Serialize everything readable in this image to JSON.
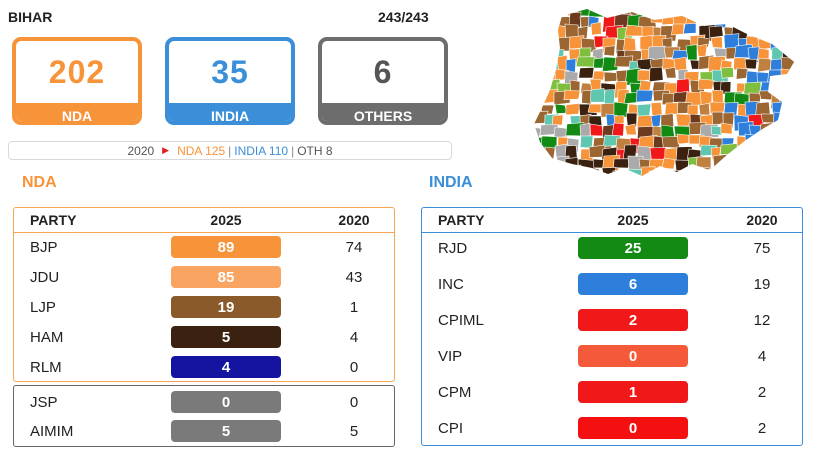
{
  "state": "BIHAR",
  "declared": "243/243",
  "tally": {
    "nda": {
      "count": "202",
      "label": "NDA"
    },
    "india": {
      "count": "35",
      "label": "INDIA"
    },
    "others": {
      "count": "6",
      "label": "OTHERS"
    }
  },
  "previous": {
    "year": "2020",
    "nda": "NDA 125",
    "india": "INDIA 110",
    "oth": "OTH 8",
    "sep": "|"
  },
  "nda_section": {
    "title": "NDA",
    "headers": {
      "party": "PARTY",
      "y2025": "2025",
      "y2020": "2020"
    },
    "rows": [
      {
        "party": "BJP",
        "seats_2025": "89",
        "seats_2020": "74",
        "color": "#f7943a"
      },
      {
        "party": "JDU",
        "seats_2025": "85",
        "seats_2020": "43",
        "color": "#f9a460"
      },
      {
        "party": "LJP",
        "seats_2025": "19",
        "seats_2020": "1",
        "color": "#8b5a2b"
      },
      {
        "party": "HAM",
        "seats_2025": "5",
        "seats_2020": "4",
        "color": "#3b2210"
      },
      {
        "party": "RLM",
        "seats_2025": "4",
        "seats_2020": "0",
        "color": "#1414a0"
      }
    ]
  },
  "others_section": {
    "rows": [
      {
        "party": "JSP",
        "seats_2025": "0",
        "seats_2020": "0",
        "color": "#7a7a7a"
      },
      {
        "party": "AIMIM",
        "seats_2025": "5",
        "seats_2020": "5",
        "color": "#7a7a7a"
      }
    ]
  },
  "india_section": {
    "title": "INDIA",
    "headers": {
      "party": "PARTY",
      "y2025": "2025",
      "y2020": "2020"
    },
    "rows": [
      {
        "party": "RJD",
        "seats_2025": "25",
        "seats_2020": "75",
        "color": "#138a13"
      },
      {
        "party": "INC",
        "seats_2025": "6",
        "seats_2020": "19",
        "color": "#2e7fdc"
      },
      {
        "party": "CPIML",
        "seats_2025": "2",
        "seats_2020": "12",
        "color": "#f01818"
      },
      {
        "party": "VIP",
        "seats_2025": "0",
        "seats_2020": "4",
        "color": "#f45a3a"
      },
      {
        "party": "CPM",
        "seats_2025": "1",
        "seats_2020": "2",
        "color": "#f01818"
      },
      {
        "party": "CPI",
        "seats_2025": "0",
        "seats_2020": "2",
        "color": "#f41010"
      }
    ]
  },
  "map": {
    "icon": "bihar-constituency-map",
    "colors": [
      "#9b6632",
      "#f7943a",
      "#138a13",
      "#2e7fdc",
      "#6b3a1f",
      "#3b2210",
      "#f01818",
      "#5fc7b0",
      "#aaaaaa",
      "#c08040",
      "#7fbf3f"
    ]
  }
}
